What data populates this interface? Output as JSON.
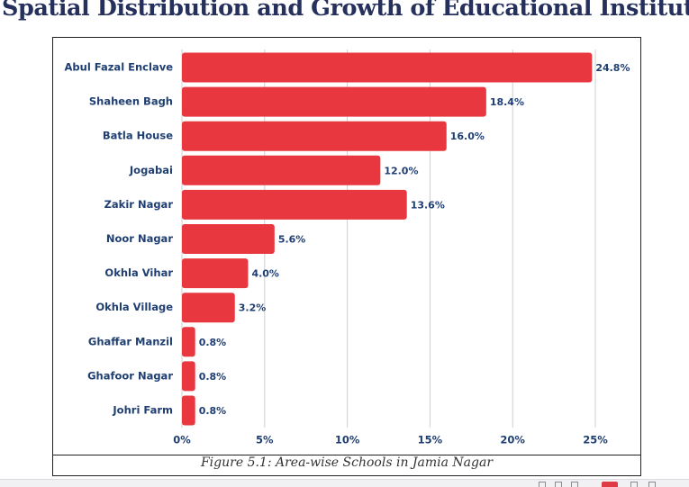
{
  "page": {
    "title": "Spatial Distribution and Growth of Educational Institutions"
  },
  "figure": {
    "caption": "Figure 5.1: Area-wise Schools in Jamia Nagar"
  },
  "colors": {
    "bar": "#e8373e",
    "label": "#1f3f73",
    "grid": "#cfcfcf",
    "title": "#26305c"
  },
  "chart_data": {
    "type": "bar",
    "orientation": "horizontal",
    "title": "",
    "xlabel": "",
    "ylabel": "",
    "categories": [
      "Abul Fazal Enclave",
      "Shaheen Bagh",
      "Batla House",
      "Jogabai",
      "Zakir Nagar",
      "Noor Nagar",
      "Okhla Vihar",
      "Okhla Village",
      "Ghaffar Manzil",
      "Ghafoor Nagar",
      "Johri Farm"
    ],
    "values": [
      24.8,
      18.4,
      16.0,
      12.0,
      13.6,
      5.6,
      4.0,
      3.2,
      0.8,
      0.8,
      0.8
    ],
    "value_labels": [
      "24.8%",
      "18.4%",
      "16.0%",
      "12.0%",
      "13.6%",
      "5.6%",
      "4.0%",
      "3.2%",
      "0.8%",
      "0.8%",
      "0.8%"
    ],
    "xlim": [
      0,
      25
    ],
    "xticks": [
      0,
      5,
      10,
      15,
      20,
      25
    ],
    "xtick_labels": [
      "0%",
      "5%",
      "10%",
      "15%",
      "20%",
      "25%"
    ],
    "grid": true,
    "legend": "none"
  }
}
